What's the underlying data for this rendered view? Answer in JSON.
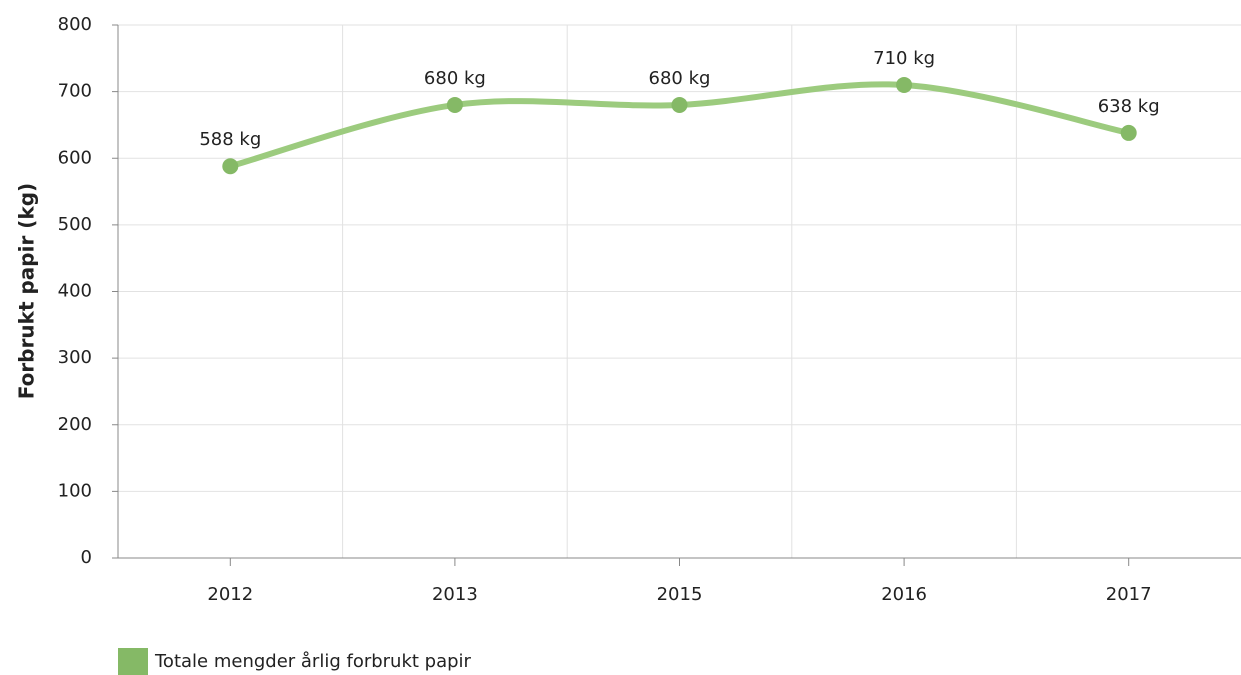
{
  "chart_data": {
    "type": "line",
    "categories": [
      "2012",
      "2013",
      "2015",
      "2016",
      "2017"
    ],
    "series": [
      {
        "name": "Totale mengder årlig forbrukt papir",
        "color": "#85b966",
        "values": [
          588,
          680,
          680,
          710,
          638
        ],
        "value_labels": [
          "588 kg",
          "680 kg",
          "680 kg",
          "710 kg",
          "638 kg"
        ]
      }
    ],
    "ylabel": "Forbrukt papir (kg)",
    "ylim": [
      0,
      800
    ],
    "yticks": [
      0,
      100,
      200,
      300,
      400,
      500,
      600,
      700,
      800
    ],
    "grid": true
  }
}
